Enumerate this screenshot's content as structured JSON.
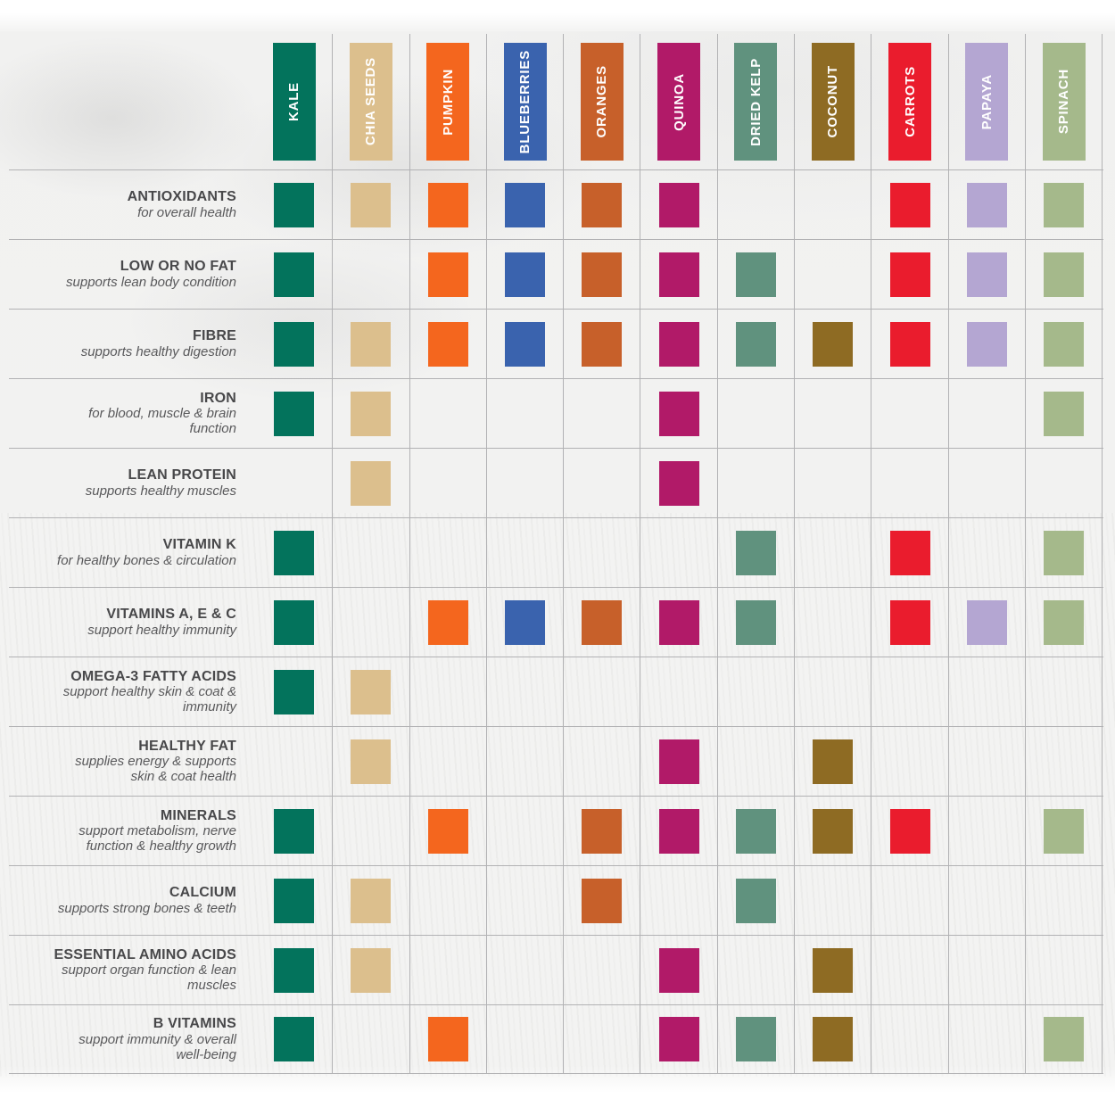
{
  "chart_data": {
    "type": "heatmap",
    "description": "Ingredient nutrient matrix: colored square = ingredient provides that nutrient",
    "legend_position": "none",
    "grid": true,
    "grid_line_color": "#b2b2b4",
    "columns": [
      {
        "label": "KALE",
        "color": "#03735C"
      },
      {
        "label": "CHIA SEEDS",
        "color": "#DCBF8D"
      },
      {
        "label": "PUMPKIN",
        "color": "#F4661E"
      },
      {
        "label": "BLUEBERRIES",
        "color": "#3A63AE"
      },
      {
        "label": "ORANGES",
        "color": "#C7602A"
      },
      {
        "label": "QUINOA",
        "color": "#B11A68"
      },
      {
        "label": "DRIED KELP",
        "color": "#60927E"
      },
      {
        "label": "COCONUT",
        "color": "#8E6B23"
      },
      {
        "label": "CARROTS",
        "color": "#EA1C2D"
      },
      {
        "label": "PAPAYA",
        "color": "#B4A6D2"
      },
      {
        "label": "SPINACH",
        "color": "#A5B98B"
      }
    ],
    "rows": [
      {
        "title": "ANTIOXIDANTS",
        "subtitle": "for overall health",
        "cells": [
          1,
          1,
          1,
          1,
          1,
          1,
          0,
          0,
          1,
          1,
          1
        ]
      },
      {
        "title": "LOW OR NO FAT",
        "subtitle": "supports lean body condition",
        "cells": [
          1,
          0,
          1,
          1,
          1,
          1,
          1,
          0,
          1,
          1,
          1
        ]
      },
      {
        "title": "FIBRE",
        "subtitle": "supports healthy digestion",
        "cells": [
          1,
          1,
          1,
          1,
          1,
          1,
          1,
          1,
          1,
          1,
          1
        ]
      },
      {
        "title": "IRON",
        "subtitle": "for blood, muscle & brain function",
        "cells": [
          1,
          1,
          0,
          0,
          0,
          1,
          0,
          0,
          0,
          0,
          1
        ]
      },
      {
        "title": "LEAN PROTEIN",
        "subtitle": "supports healthy muscles",
        "cells": [
          0,
          1,
          0,
          0,
          0,
          1,
          0,
          0,
          0,
          0,
          0
        ]
      },
      {
        "title": "VITAMIN K",
        "subtitle": "for healthy bones & circulation",
        "cells": [
          1,
          0,
          0,
          0,
          0,
          0,
          1,
          0,
          1,
          0,
          1
        ]
      },
      {
        "title": "VITAMINS A, E & C",
        "subtitle": "support healthy immunity",
        "cells": [
          1,
          0,
          1,
          1,
          1,
          1,
          1,
          0,
          1,
          1,
          1
        ]
      },
      {
        "title": "OMEGA-3 FATTY ACIDS",
        "subtitle": "support healthy skin & coat & immunity",
        "cells": [
          1,
          1,
          0,
          0,
          0,
          0,
          0,
          0,
          0,
          0,
          0
        ]
      },
      {
        "title": "HEALTHY FAT",
        "subtitle": "supplies energy & supports skin & coat health",
        "cells": [
          0,
          1,
          0,
          0,
          0,
          1,
          0,
          1,
          0,
          0,
          0
        ]
      },
      {
        "title": "MINERALS",
        "subtitle": "support metabolism, nerve function & healthy growth",
        "cells": [
          1,
          0,
          1,
          0,
          1,
          1,
          1,
          1,
          1,
          0,
          1
        ]
      },
      {
        "title": "CALCIUM",
        "subtitle": "supports strong bones & teeth",
        "cells": [
          1,
          1,
          0,
          0,
          1,
          0,
          1,
          0,
          0,
          0,
          0
        ]
      },
      {
        "title": "ESSENTIAL AMINO ACIDS",
        "subtitle": "support organ function & lean muscles",
        "cells": [
          1,
          1,
          0,
          0,
          0,
          1,
          0,
          1,
          0,
          0,
          0
        ]
      },
      {
        "title": "B VITAMINS",
        "subtitle": "support immunity & overall well-being",
        "cells": [
          1,
          0,
          1,
          0,
          0,
          1,
          1,
          1,
          0,
          0,
          1
        ]
      }
    ]
  }
}
